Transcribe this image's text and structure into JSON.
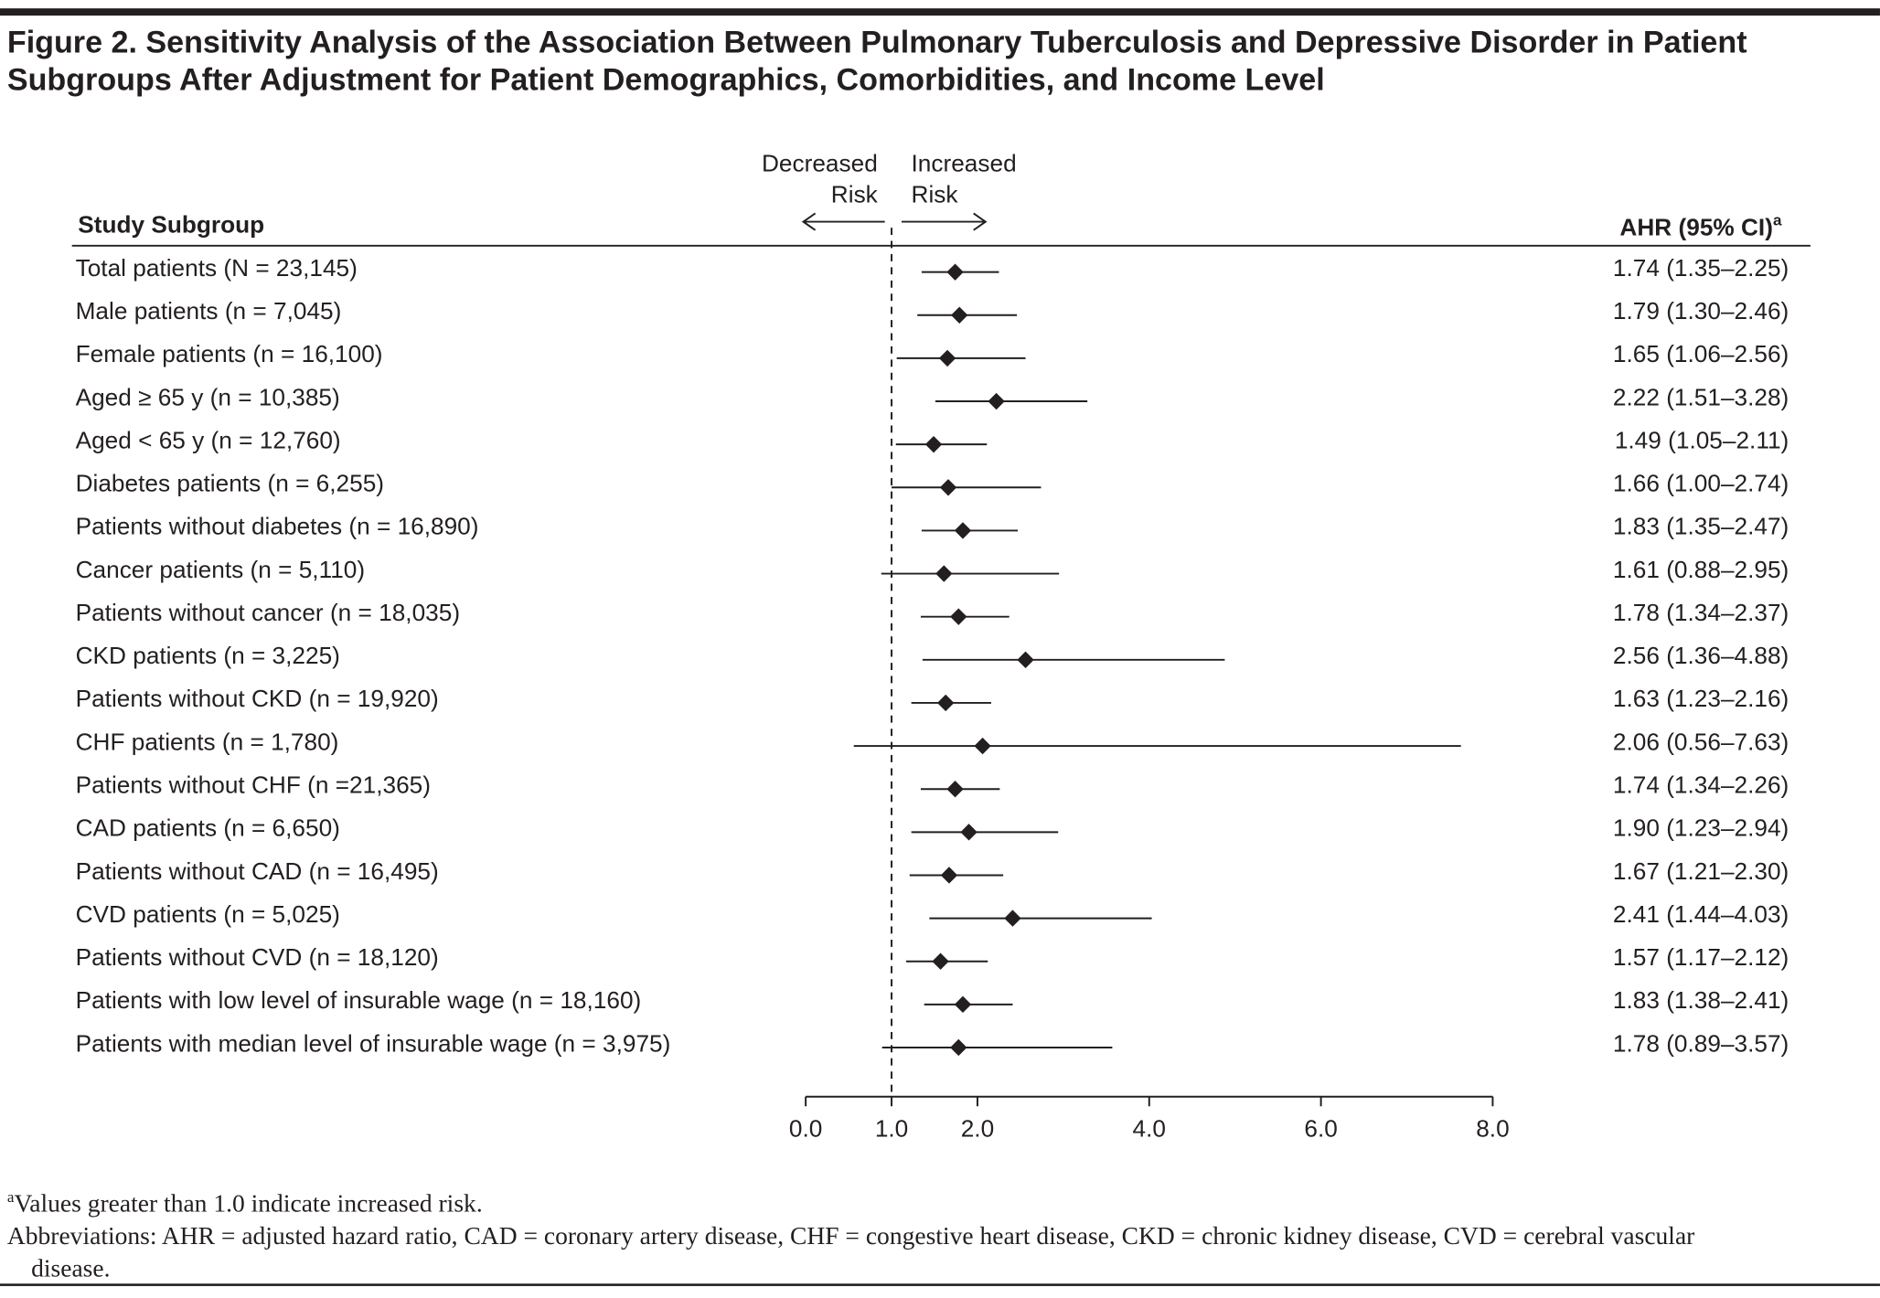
{
  "chart_data": {
    "type": "forest",
    "title": "Figure 2. Sensitivity Analysis of the Association Between Pulmonary Tuberculosis and Depressive Disorder in Patient Subgroups After Adjustment for Patient Demographics, Comorbidities, and Income Level",
    "category_header": "Study Subgroup",
    "value_header": "AHR (95% CI)",
    "value_header_note": "a",
    "left_annotation": "Decreased Risk",
    "right_annotation": "Increased Risk",
    "reference": 1,
    "categories": [
      "Total patients (N = 23,145)",
      "Male patients (n = 7,045)",
      "Female patients (n = 16,100)",
      "Aged ≥ 65 y (n = 10,385)",
      "Aged < 65 y (n = 12,760)",
      "Diabetes patients (n = 6,255)",
      "Patients without diabetes (n = 16,890)",
      "Cancer patients (n = 5,110)",
      "Patients without cancer (n = 18,035)",
      "CKD patients (n = 3,225)",
      "Patients without CKD (n = 19,920)",
      "CHF patients (n = 1,780)",
      "Patients without CHF (n =21,365)",
      "CAD patients (n = 6,650)",
      "Patients without CAD (n = 16,495)",
      "CVD patients (n = 5,025)",
      "Patients without CVD (n = 18,120)",
      "Patients with low level of insurable wage (n = 18,160)",
      "Patients with median level of insurable wage (n = 3,975)"
    ],
    "values": [
      1.74,
      1.79,
      1.65,
      2.22,
      1.49,
      1.66,
      1.83,
      1.61,
      1.78,
      2.56,
      1.63,
      2.06,
      1.74,
      1.9,
      1.67,
      2.41,
      1.57,
      1.83,
      1.78
    ],
    "lower": [
      1.35,
      1.3,
      1.06,
      1.51,
      1.05,
      1.0,
      1.35,
      0.88,
      1.34,
      1.36,
      1.23,
      0.56,
      1.34,
      1.23,
      1.21,
      1.44,
      1.17,
      1.38,
      0.89
    ],
    "upper": [
      2.25,
      2.46,
      2.56,
      3.28,
      2.11,
      2.74,
      2.47,
      2.95,
      2.37,
      4.88,
      2.16,
      7.63,
      2.26,
      2.94,
      2.3,
      4.03,
      2.12,
      2.41,
      3.57
    ],
    "value_labels": [
      "1.74 (1.35–2.25)",
      "1.79 (1.30–2.46)",
      "1.65 (1.06–2.56)",
      "2.22 (1.51–3.28)",
      "1.49 (1.05–2.11)",
      "1.66 (1.00–2.74)",
      "1.83 (1.35–2.47)",
      "1.61 (0.88–2.95)",
      "1.78 (1.34–2.37)",
      "2.56 (1.36–4.88)",
      "1.63 (1.23–2.16)",
      "2.06 (0.56–7.63)",
      "1.74 (1.34–2.26)",
      "1.90 (1.23–2.94)",
      "1.67 (1.21–2.30)",
      "2.41 (1.44–4.03)",
      "1.57 (1.17–2.12)",
      "1.83 (1.38–2.41)",
      "1.78 (0.89–3.57)"
    ],
    "xlim": [
      0,
      8
    ],
    "xticks": [
      {
        "value": 0,
        "label": "0.0"
      },
      {
        "value": 1,
        "label": "1.0"
      },
      {
        "value": 2,
        "label": "2.0"
      },
      {
        "value": 4,
        "label": "4.0"
      },
      {
        "value": 6,
        "label": "6.0"
      },
      {
        "value": 8,
        "label": "8.0"
      }
    ],
    "color": "#231f20",
    "footnote_marker": "a",
    "footnote": "Values greater than 1.0 indicate increased risk.",
    "abbreviations": "Abbreviations: AHR = adjusted hazard ratio, CAD = coronary artery disease, CHF = congestive heart disease, CKD = chronic kidney disease, CVD = cerebral vascular disease."
  }
}
